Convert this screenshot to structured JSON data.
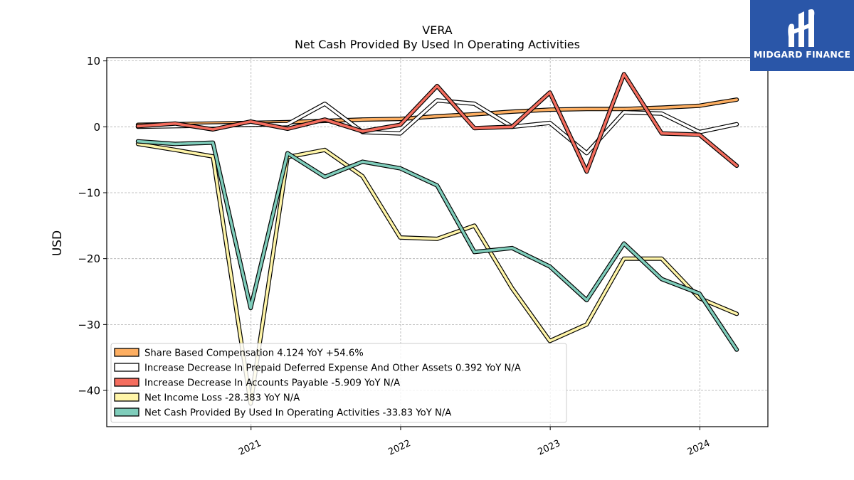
{
  "chart_data": {
    "type": "line",
    "title": "VERA",
    "subtitle": "Net Cash Provided By Used In Operating Activities",
    "ylabel": "USD",
    "xlabel": "",
    "xlim": [
      "2020-01-15",
      "2024-06-15"
    ],
    "ylim": [
      -45.5,
      10.5
    ],
    "yticks": [
      10,
      0,
      -10,
      -20,
      -30,
      -40
    ],
    "ytick_labels": [
      "10",
      "0",
      "−10",
      "−20",
      "−30",
      "−40"
    ],
    "xticks": [
      "2021-01-01",
      "2022-01-01",
      "2023-01-01",
      "2024-01-01"
    ],
    "xtick_labels": [
      "2021",
      "2022",
      "2023",
      "2024"
    ],
    "grid": true,
    "legend_position": "lower-left",
    "x": [
      "2020-03-31",
      "2020-06-30",
      "2020-09-30",
      "2020-12-31",
      "2021-03-31",
      "2021-06-30",
      "2021-09-30",
      "2021-12-31",
      "2022-03-31",
      "2022-06-30",
      "2022-09-30",
      "2022-12-31",
      "2023-03-31",
      "2023-06-30",
      "2023-09-30",
      "2023-12-31",
      "2024-03-31"
    ],
    "series": [
      {
        "name": "Share Based Compensation",
        "legend": "Share Based Compensation  4.124 YoY +54.6%",
        "color": "#fdae61",
        "values": [
          0.3,
          0.4,
          0.5,
          0.6,
          0.7,
          0.9,
          1.1,
          1.2,
          1.6,
          1.9,
          2.3,
          2.6,
          2.7,
          2.7,
          2.9,
          3.2,
          4.124
        ]
      },
      {
        "name": "Increase Decrease In Prepaid Deferred Expense And Other Assets",
        "legend": "Increase Decrease In Prepaid Deferred Expense And Other Assets  0.392 YoY N/A",
        "color": "#ffffff",
        "values": [
          0.0,
          0.1,
          0.2,
          0.3,
          0.4,
          3.5,
          -0.8,
          -1.0,
          4.0,
          3.5,
          0.0,
          0.6,
          -4.0,
          2.2,
          2.0,
          -0.8,
          0.392
        ]
      },
      {
        "name": "Increase Decrease In Accounts Payable",
        "legend": "Increase Decrease In Accounts Payable  -5.909 YoY N/A",
        "color": "#f46d5e",
        "values": [
          0.1,
          0.5,
          -0.4,
          0.8,
          -0.3,
          1.1,
          -0.7,
          0.3,
          6.2,
          -0.2,
          0.0,
          5.2,
          -6.8,
          8.0,
          -1.0,
          -1.2,
          -5.909
        ]
      },
      {
        "name": "Net Income Loss",
        "legend": "Net Income Loss  -28.383 YoY N/A",
        "color": "#fff5a8",
        "values": [
          -2.6,
          -3.5,
          -4.5,
          -42.0,
          -4.6,
          -3.5,
          -7.5,
          -16.8,
          -17.0,
          -15.0,
          -24.5,
          -32.5,
          -30.0,
          -20.0,
          -20.0,
          -26.0,
          -28.383
        ]
      },
      {
        "name": "Net Cash Provided By Used In Operating Activities",
        "legend": "Net Cash Provided By Used In Operating Activities  -33.83 YoY N/A",
        "color": "#7fcdbb",
        "values": [
          -2.2,
          -2.6,
          -2.4,
          -27.5,
          -4.0,
          -7.6,
          -5.3,
          -6.3,
          -8.9,
          -19.0,
          -18.4,
          -21.2,
          -26.3,
          -17.7,
          -23.1,
          -25.3,
          -33.83
        ]
      }
    ]
  },
  "logo": {
    "text": "MIDGARD FINANCE"
  }
}
